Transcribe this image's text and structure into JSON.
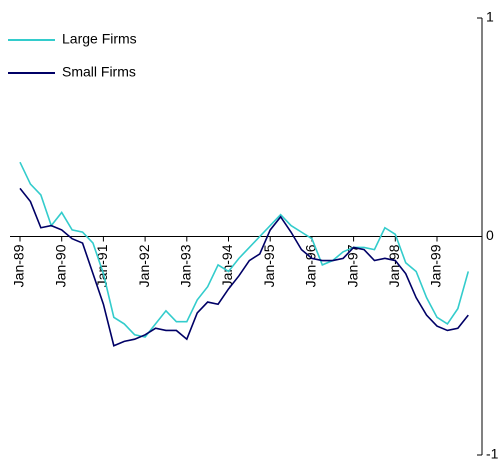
{
  "chart_data": {
    "type": "line",
    "categories": [
      "Jan-89",
      null,
      null,
      null,
      "Jan-90",
      null,
      null,
      null,
      "Jan-91",
      null,
      null,
      null,
      "Jan-92",
      null,
      null,
      null,
      "Jan-93",
      null,
      null,
      null,
      "Jan-94",
      null,
      null,
      null,
      "Jan-95",
      null,
      null,
      null,
      "Jan-96",
      null,
      null,
      null,
      "Jan-97",
      null,
      null,
      null,
      "Jan-98",
      null,
      null,
      null,
      "Jan-99",
      null,
      null,
      null
    ],
    "series": [
      {
        "name": "Large Firms",
        "color": "#33cccc",
        "values": [
          0.34,
          0.24,
          0.19,
          0.05,
          0.11,
          0.03,
          0.02,
          -0.03,
          -0.17,
          -0.37,
          -0.4,
          -0.45,
          -0.46,
          -0.4,
          -0.34,
          -0.39,
          -0.39,
          -0.29,
          -0.23,
          -0.13,
          -0.16,
          -0.1,
          -0.05,
          0.0,
          0.05,
          0.1,
          0.05,
          0.02,
          -0.01,
          -0.13,
          -0.11,
          -0.07,
          -0.05,
          -0.05,
          -0.06,
          0.04,
          0.01,
          -0.12,
          -0.16,
          -0.28,
          -0.37,
          -0.4,
          -0.33,
          -0.16
        ]
      },
      {
        "name": "Small Firms",
        "color": "#000066",
        "values": [
          0.22,
          0.16,
          0.04,
          0.05,
          0.03,
          -0.01,
          -0.03,
          -0.17,
          -0.31,
          -0.5,
          -0.48,
          -0.47,
          -0.45,
          -0.42,
          -0.43,
          -0.43,
          -0.47,
          -0.35,
          -0.3,
          -0.31,
          -0.24,
          -0.18,
          -0.11,
          -0.08,
          0.03,
          0.09,
          0.02,
          -0.06,
          -0.1,
          -0.11,
          -0.11,
          -0.1,
          -0.05,
          -0.06,
          -0.11,
          -0.1,
          -0.11,
          -0.17,
          -0.28,
          -0.36,
          -0.41,
          -0.43,
          -0.42,
          -0.36
        ]
      }
    ],
    "ylim": [
      -1,
      1
    ],
    "yticks": [
      -1,
      0,
      1
    ],
    "y_axis_side": "right",
    "legend": "top-left"
  }
}
